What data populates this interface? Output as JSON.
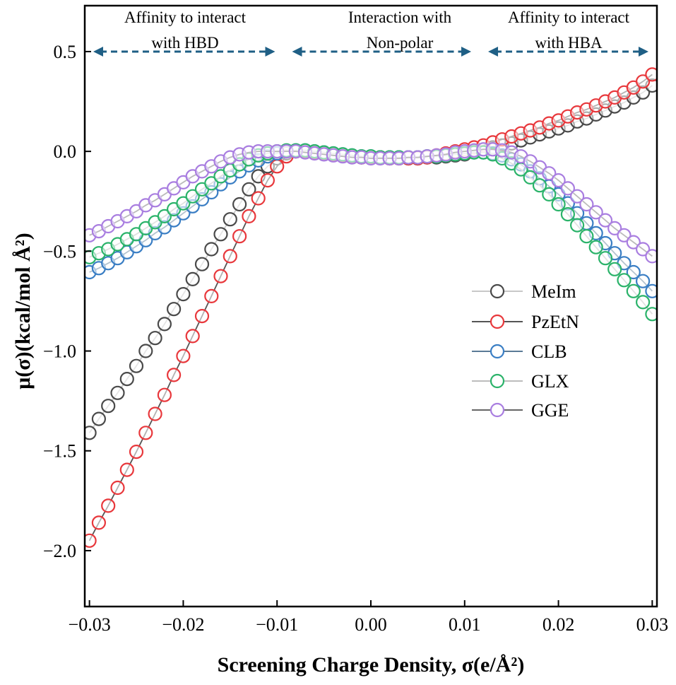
{
  "chart_data": {
    "type": "scatter",
    "title": "",
    "xlabel": "Screening Charge Density, σ(e/Å²)",
    "ylabel": "μ(σ)(kcal/mol Å²)",
    "xlim": [
      -0.0305,
      0.0305
    ],
    "ylim": [
      -2.28,
      0.73
    ],
    "xticks": [
      {
        "value": -0.03,
        "label": "−0.03"
      },
      {
        "value": -0.02,
        "label": "−0.02"
      },
      {
        "value": -0.01,
        "label": "−0.01"
      },
      {
        "value": 0.0,
        "label": "0.00"
      },
      {
        "value": 0.01,
        "label": "0.01"
      },
      {
        "value": 0.02,
        "label": "0.02"
      },
      {
        "value": 0.03,
        "label": "0.03"
      }
    ],
    "yticks": [
      {
        "value": 0.5,
        "label": "0.5"
      },
      {
        "value": 0.0,
        "label": "0.0"
      },
      {
        "value": -0.5,
        "label": "−0.5"
      },
      {
        "value": -1.0,
        "label": "−1.0"
      },
      {
        "value": -1.5,
        "label": "−1.5"
      },
      {
        "value": -2.0,
        "label": "−2.0"
      }
    ],
    "grid": false,
    "legend_position": "right",
    "annotations": [
      {
        "line1": "Affinity to interact",
        "line2": "with HBD",
        "x_from": -0.0305,
        "x_to": -0.0093,
        "arrow_y": 0.5,
        "color": "#1f5f85"
      },
      {
        "line1": "Interaction with",
        "line2": "Non-polar",
        "x_from": -0.0093,
        "x_to": 0.0116,
        "arrow_y": 0.5,
        "color": "#1f5f85"
      },
      {
        "line1": "Affinity to interact",
        "line2": "with HBA",
        "x_from": 0.0116,
        "x_to": 0.0305,
        "arrow_y": 0.5,
        "color": "#1f5f85"
      }
    ],
    "x_start": -0.03,
    "x_step": 0.001,
    "series": [
      {
        "name": "MeIm",
        "marker_color": "#4a4a4a",
        "line_color": "#c8c8c8",
        "values": [
          -1.41,
          -1.34,
          -1.275,
          -1.21,
          -1.14,
          -1.075,
          -1.0,
          -0.935,
          -0.865,
          -0.79,
          -0.715,
          -0.64,
          -0.565,
          -0.49,
          -0.415,
          -0.34,
          -0.265,
          -0.19,
          -0.125,
          -0.075,
          -0.035,
          -0.01,
          0.0,
          0.0,
          -0.005,
          -0.01,
          -0.015,
          -0.02,
          -0.025,
          -0.03,
          -0.03,
          -0.03,
          -0.035,
          -0.035,
          -0.035,
          -0.035,
          -0.03,
          -0.03,
          -0.025,
          -0.02,
          -0.015,
          0.0,
          0.01,
          0.02,
          0.03,
          0.04,
          0.055,
          0.07,
          0.085,
          0.1,
          0.115,
          0.13,
          0.15,
          0.165,
          0.185,
          0.205,
          0.225,
          0.245,
          0.27,
          0.295,
          0.33
        ]
      },
      {
        "name": "PzEtN",
        "marker_color": "#e8383c",
        "line_color": "#555555",
        "values": [
          -1.95,
          -1.86,
          -1.775,
          -1.685,
          -1.595,
          -1.505,
          -1.41,
          -1.315,
          -1.22,
          -1.12,
          -1.025,
          -0.925,
          -0.825,
          -0.725,
          -0.625,
          -0.525,
          -0.425,
          -0.325,
          -0.235,
          -0.145,
          -0.075,
          -0.025,
          0.0,
          0.0,
          -0.005,
          -0.01,
          -0.015,
          -0.02,
          -0.025,
          -0.03,
          -0.03,
          -0.03,
          -0.035,
          -0.035,
          -0.035,
          -0.035,
          -0.03,
          -0.02,
          -0.01,
          0.0,
          0.01,
          0.02,
          0.03,
          0.045,
          0.06,
          0.075,
          0.09,
          0.105,
          0.12,
          0.14,
          0.155,
          0.175,
          0.195,
          0.21,
          0.23,
          0.25,
          0.27,
          0.295,
          0.32,
          0.35,
          0.385
        ]
      },
      {
        "name": "CLB",
        "marker_color": "#3a7ec4",
        "line_color": "#5a7a96",
        "values": [
          -0.605,
          -0.585,
          -0.56,
          -0.535,
          -0.505,
          -0.475,
          -0.445,
          -0.41,
          -0.38,
          -0.345,
          -0.31,
          -0.275,
          -0.24,
          -0.205,
          -0.165,
          -0.13,
          -0.1,
          -0.07,
          -0.045,
          -0.025,
          -0.01,
          0.0,
          0.005,
          0.005,
          0.0,
          -0.005,
          -0.01,
          -0.015,
          -0.02,
          -0.025,
          -0.025,
          -0.03,
          -0.03,
          -0.03,
          -0.03,
          -0.03,
          -0.025,
          -0.025,
          -0.02,
          -0.015,
          -0.01,
          -0.005,
          -0.005,
          -0.01,
          -0.02,
          -0.04,
          -0.065,
          -0.1,
          -0.135,
          -0.175,
          -0.215,
          -0.26,
          -0.31,
          -0.36,
          -0.41,
          -0.46,
          -0.51,
          -0.56,
          -0.605,
          -0.65,
          -0.7
        ]
      },
      {
        "name": "GLX",
        "marker_color": "#2bb36a",
        "line_color": "#bdbdbd",
        "values": [
          -0.53,
          -0.51,
          -0.49,
          -0.465,
          -0.44,
          -0.415,
          -0.385,
          -0.355,
          -0.325,
          -0.29,
          -0.26,
          -0.225,
          -0.19,
          -0.16,
          -0.125,
          -0.095,
          -0.065,
          -0.04,
          -0.02,
          -0.01,
          0.0,
          0.005,
          0.005,
          0.005,
          0.0,
          -0.005,
          -0.01,
          -0.015,
          -0.02,
          -0.025,
          -0.025,
          -0.03,
          -0.03,
          -0.03,
          -0.03,
          -0.03,
          -0.025,
          -0.025,
          -0.02,
          -0.015,
          -0.01,
          -0.005,
          -0.005,
          -0.015,
          -0.035,
          -0.06,
          -0.09,
          -0.13,
          -0.17,
          -0.215,
          -0.265,
          -0.315,
          -0.37,
          -0.425,
          -0.48,
          -0.535,
          -0.59,
          -0.645,
          -0.7,
          -0.755,
          -0.815
        ]
      },
      {
        "name": "GGE",
        "marker_color": "#a97ee0",
        "line_color": "#666666",
        "values": [
          -0.42,
          -0.4,
          -0.375,
          -0.35,
          -0.325,
          -0.3,
          -0.27,
          -0.245,
          -0.215,
          -0.185,
          -0.155,
          -0.125,
          -0.1,
          -0.075,
          -0.05,
          -0.03,
          -0.015,
          -0.005,
          0.0,
          0.0,
          0.0,
          0.0,
          0.0,
          -0.005,
          -0.01,
          -0.015,
          -0.02,
          -0.025,
          -0.03,
          -0.03,
          -0.035,
          -0.035,
          -0.035,
          -0.035,
          -0.03,
          -0.03,
          -0.025,
          -0.02,
          -0.015,
          -0.005,
          0.0,
          0.005,
          0.01,
          0.01,
          0.005,
          -0.005,
          -0.025,
          -0.05,
          -0.08,
          -0.11,
          -0.145,
          -0.185,
          -0.225,
          -0.265,
          -0.305,
          -0.345,
          -0.385,
          -0.42,
          -0.455,
          -0.49,
          -0.525
        ]
      }
    ]
  }
}
